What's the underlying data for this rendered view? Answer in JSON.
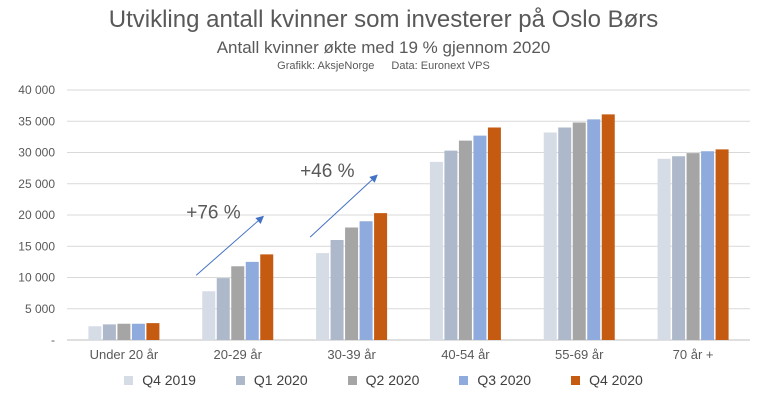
{
  "chart_data": {
    "type": "bar",
    "title": "Utvikling antall kvinner som investerer på Oslo Børs",
    "subtitle": "Antall kvinner økte med 19 % gjennom 2020",
    "credit_graphics": "Grafikk: AksjeNorge",
    "credit_data": "Data: Euronext VPS",
    "categories": [
      "Under 20 år",
      "20-29 år",
      "30-39 år",
      "40-54 år",
      "55-69 år",
      "70 år +"
    ],
    "ylim": [
      0,
      40000
    ],
    "yticks": [
      0,
      5000,
      10000,
      15000,
      20000,
      25000,
      30000,
      35000,
      40000
    ],
    "ytick_labels": [
      "-",
      "5 000",
      "10 000",
      "15 000",
      "20 000",
      "25 000",
      "30 000",
      "35 000",
      "40 000"
    ],
    "grid": true,
    "legend_position": "bottom",
    "series": [
      {
        "name": "Q4 2019",
        "color": "#d6dce5",
        "values": [
          2200,
          7800,
          13900,
          28500,
          33200,
          29000
        ]
      },
      {
        "name": "Q1 2020",
        "color": "#adb9ca",
        "values": [
          2500,
          9900,
          16000,
          30300,
          34000,
          29400
        ]
      },
      {
        "name": "Q2 2020",
        "color": "#a5a5a5",
        "values": [
          2600,
          11800,
          18000,
          31900,
          34800,
          29900
        ]
      },
      {
        "name": "Q3 2020",
        "color": "#8faadc",
        "values": [
          2600,
          12500,
          19000,
          32700,
          35300,
          30200
        ]
      },
      {
        "name": "Q4 2020",
        "color": "#c55a11",
        "values": [
          2700,
          13700,
          20300,
          34000,
          36100,
          30500
        ]
      }
    ],
    "annotations": [
      {
        "text": "+76 %",
        "category": "20-29 år"
      },
      {
        "text": "+46 %",
        "category": "30-39 år"
      }
    ]
  }
}
